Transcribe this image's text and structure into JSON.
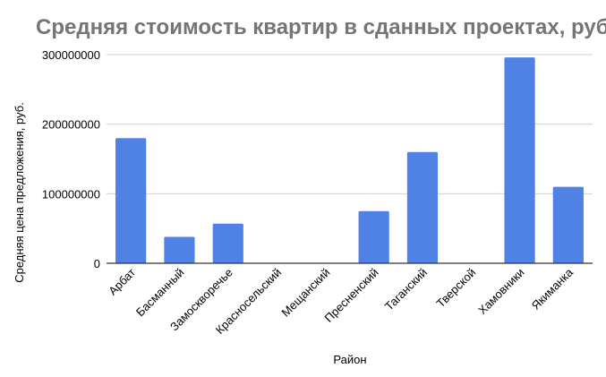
{
  "chart_data": {
    "type": "bar",
    "title": "Средняя стоимость квартир в сданных проектах, руб.",
    "xlabel": "Район",
    "ylabel": "Средняя цена предложения, руб.",
    "categories": [
      "Арбат",
      "Басманный",
      "Замоскворечье",
      "Красносельский",
      "Мещанский",
      "Пресненский",
      "Таганский",
      "Тверской",
      "Хамовники",
      "Якиманка"
    ],
    "values": [
      180000000,
      38000000,
      57000000,
      0,
      0,
      75000000,
      160000000,
      0,
      296000000,
      110000000
    ],
    "ylim": [
      0,
      300000000
    ],
    "yticks": [
      "0",
      "100000000",
      "200000000",
      "300000000"
    ],
    "grid": true,
    "legend": "none",
    "bar_color": "#5081e4"
  }
}
